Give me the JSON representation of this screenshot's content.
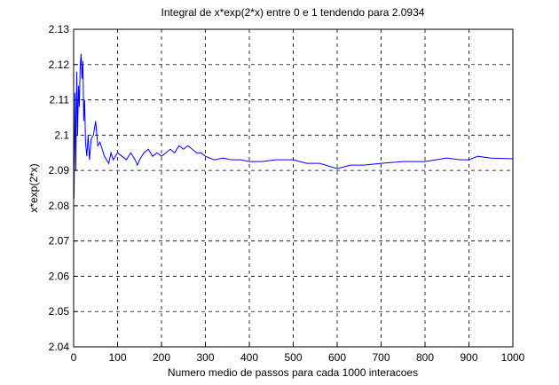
{
  "chart_data": {
    "type": "line",
    "title": "Integral de x*exp(2*x) entre 0 e 1 tendendo para 2.0934",
    "x_label": "Numero medio de passos para cada 1000 interacoes",
    "y_label": "x*exp(2*x)",
    "x": [
      1,
      3,
      5,
      7,
      9,
      11,
      13,
      15,
      17,
      19,
      21,
      23,
      25,
      27,
      30,
      33,
      36,
      40,
      45,
      50,
      55,
      60,
      65,
      70,
      75,
      80,
      85,
      90,
      100,
      110,
      120,
      130,
      140,
      145,
      150,
      160,
      170,
      180,
      190,
      200,
      210,
      220,
      230,
      240,
      250,
      260,
      270,
      280,
      290,
      300,
      320,
      340,
      360,
      380,
      400,
      430,
      460,
      500,
      530,
      560,
      600,
      630,
      660,
      700,
      750,
      800,
      850,
      880,
      900,
      920,
      950,
      1000
    ],
    "series": [
      {
        "color": "#0000ff",
        "values": [
          2.082,
          2.112,
          2.09,
          2.118,
          2.1,
          2.114,
          2.108,
          2.12,
          2.123,
          2.116,
          2.121,
          2.104,
          2.11,
          2.098,
          2.094,
          2.1,
          2.093,
          2.099,
          2.1,
          2.104,
          2.097,
          2.098,
          2.096,
          2.094,
          2.093,
          2.092,
          2.095,
          2.093,
          2.095,
          2.094,
          2.093,
          2.095,
          2.093,
          2.0915,
          2.093,
          2.095,
          2.096,
          2.094,
          2.095,
          2.094,
          2.095,
          2.096,
          2.095,
          2.097,
          2.096,
          2.097,
          2.096,
          2.095,
          2.095,
          2.094,
          2.093,
          2.0935,
          2.093,
          2.093,
          2.0925,
          2.0925,
          2.093,
          2.093,
          2.092,
          2.092,
          2.0905,
          2.0915,
          2.0915,
          2.092,
          2.0925,
          2.0925,
          2.0935,
          2.093,
          2.093,
          2.094,
          2.0935,
          2.0933
        ]
      }
    ],
    "xlim": [
      0,
      1000
    ],
    "xticks": [
      0,
      100,
      200,
      300,
      400,
      500,
      600,
      700,
      800,
      900,
      1000
    ],
    "ylim": [
      2.04,
      2.13
    ],
    "yticks": [
      2.04,
      2.05,
      2.06,
      2.07,
      2.08,
      2.09,
      2.1,
      2.11,
      2.12,
      2.13
    ],
    "grid": true
  }
}
